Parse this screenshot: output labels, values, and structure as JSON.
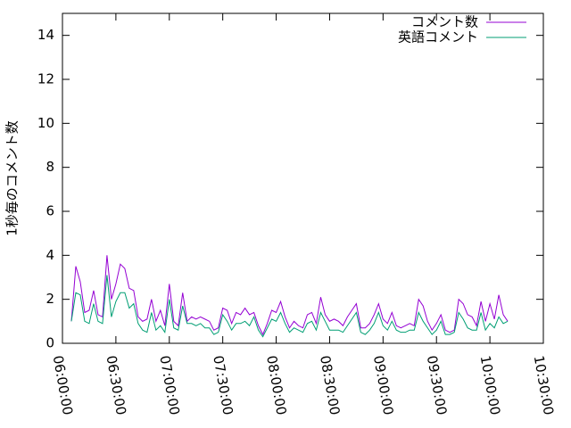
{
  "chart_data": {
    "type": "line",
    "ylabel": "1秒毎のコメント数",
    "x": [
      "06:05:00",
      "06:07:30",
      "06:10:00",
      "06:12:30",
      "06:15:00",
      "06:17:30",
      "06:20:00",
      "06:22:30",
      "06:25:00",
      "06:27:30",
      "06:30:00",
      "06:32:30",
      "06:35:00",
      "06:37:30",
      "06:40:00",
      "06:42:30",
      "06:45:00",
      "06:47:30",
      "06:50:00",
      "06:52:30",
      "06:55:00",
      "06:57:30",
      "07:00:00",
      "07:02:30",
      "07:05:00",
      "07:07:30",
      "07:10:00",
      "07:12:30",
      "07:15:00",
      "07:17:30",
      "07:20:00",
      "07:22:30",
      "07:25:00",
      "07:27:30",
      "07:30:00",
      "07:32:30",
      "07:35:00",
      "07:37:30",
      "07:40:00",
      "07:42:30",
      "07:45:00",
      "07:47:30",
      "07:50:00",
      "07:52:30",
      "07:55:00",
      "07:57:30",
      "08:00:00",
      "08:02:30",
      "08:05:00",
      "08:07:30",
      "08:10:00",
      "08:12:30",
      "08:15:00",
      "08:17:30",
      "08:20:00",
      "08:22:30",
      "08:25:00",
      "08:27:30",
      "08:30:00",
      "08:32:30",
      "08:35:00",
      "08:37:30",
      "08:40:00",
      "08:42:30",
      "08:45:00",
      "08:47:30",
      "08:50:00",
      "08:52:30",
      "08:55:00",
      "08:57:30",
      "09:00:00",
      "09:02:30",
      "09:05:00",
      "09:07:30",
      "09:10:00",
      "09:12:30",
      "09:15:00",
      "09:17:30",
      "09:20:00",
      "09:22:30",
      "09:25:00",
      "09:27:30",
      "09:30:00",
      "09:32:30",
      "09:35:00",
      "09:37:30",
      "09:40:00",
      "09:42:30",
      "09:45:00",
      "09:47:30",
      "09:50:00",
      "09:52:30",
      "09:55:00",
      "09:57:30",
      "10:00:00",
      "10:02:30",
      "10:05:00",
      "10:07:30",
      "10:10:00"
    ],
    "series": [
      {
        "name": "コメント数",
        "color": "#9400d3",
        "values": [
          1.0,
          3.5,
          2.8,
          1.4,
          1.5,
          2.4,
          1.3,
          1.2,
          4.0,
          2.0,
          2.7,
          3.6,
          3.4,
          2.5,
          2.4,
          1.2,
          1.0,
          1.1,
          2.0,
          1.0,
          1.5,
          0.8,
          2.7,
          1.0,
          0.8,
          2.3,
          1.0,
          1.2,
          1.1,
          1.2,
          1.1,
          1.0,
          0.6,
          0.7,
          1.6,
          1.5,
          0.9,
          1.4,
          1.3,
          1.6,
          1.3,
          1.4,
          0.8,
          0.4,
          0.9,
          1.5,
          1.4,
          1.9,
          1.2,
          0.7,
          1.0,
          0.8,
          0.7,
          1.3,
          1.4,
          0.9,
          2.1,
          1.3,
          1.0,
          1.1,
          1.0,
          0.8,
          1.2,
          1.5,
          1.8,
          0.7,
          0.7,
          0.9,
          1.3,
          1.8,
          1.1,
          0.9,
          1.4,
          0.8,
          0.7,
          0.8,
          0.9,
          0.8,
          2.0,
          1.7,
          1.0,
          0.6,
          0.9,
          1.3,
          0.6,
          0.5,
          0.6,
          2.0,
          1.8,
          1.3,
          1.2,
          0.8,
          1.9,
          1.0,
          1.8,
          1.1,
          2.2,
          1.3,
          1.0
        ]
      },
      {
        "name": "英語コメント",
        "color": "#009e73",
        "values": [
          1.0,
          2.3,
          2.2,
          1.0,
          0.9,
          1.8,
          1.0,
          0.9,
          3.1,
          1.2,
          1.9,
          2.3,
          2.3,
          1.6,
          1.8,
          0.9,
          0.6,
          0.5,
          1.4,
          0.6,
          0.8,
          0.5,
          2.0,
          0.7,
          0.6,
          1.7,
          0.9,
          0.9,
          0.8,
          0.9,
          0.7,
          0.7,
          0.4,
          0.5,
          1.3,
          1.0,
          0.6,
          0.9,
          0.9,
          1.0,
          0.8,
          1.2,
          0.6,
          0.3,
          0.7,
          1.1,
          1.0,
          1.4,
          0.9,
          0.5,
          0.7,
          0.6,
          0.5,
          0.9,
          1.0,
          0.6,
          1.4,
          1.0,
          0.6,
          0.6,
          0.6,
          0.5,
          0.8,
          1.1,
          1.4,
          0.5,
          0.4,
          0.6,
          0.9,
          1.4,
          0.8,
          0.6,
          1.0,
          0.6,
          0.5,
          0.5,
          0.6,
          0.6,
          1.4,
          1.0,
          0.7,
          0.4,
          0.6,
          1.0,
          0.4,
          0.4,
          0.5,
          1.4,
          1.1,
          0.7,
          0.6,
          0.6,
          1.4,
          0.6,
          0.9,
          0.7,
          1.2,
          0.9,
          1.0
        ]
      }
    ],
    "xlim": [
      "06:00:00",
      "10:30:00"
    ],
    "xticks": [
      "06:00:00",
      "06:30:00",
      "07:00:00",
      "07:30:00",
      "08:00:00",
      "08:30:00",
      "09:00:00",
      "09:30:00",
      "10:00:00",
      "10:30:00"
    ],
    "ylim": [
      0,
      15
    ],
    "yticks": [
      0,
      2,
      4,
      6,
      8,
      10,
      12,
      14
    ],
    "legend": "top-right"
  }
}
